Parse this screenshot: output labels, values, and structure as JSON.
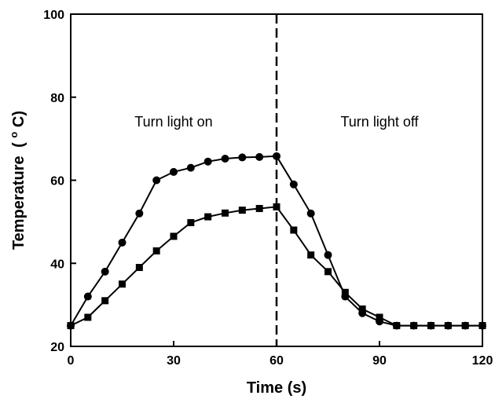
{
  "chart_data": {
    "type": "line",
    "xlabel": "Time (s)",
    "ylabel": "Temperature",
    "ylabel_sup": "o",
    "ylabel_unit": "C)",
    "ylabel_open": "(",
    "xlim": [
      0,
      120
    ],
    "ylim": [
      20,
      100
    ],
    "xticks": [
      0,
      30,
      60,
      90,
      120
    ],
    "yticks": [
      20,
      40,
      60,
      80,
      100
    ],
    "grid": false,
    "annotations": [
      {
        "text": "Turn light on",
        "x": 30,
        "y": 73
      },
      {
        "text": "Turn light off",
        "x": 90,
        "y": 73
      }
    ],
    "vline": {
      "x": 60,
      "style": "dashed"
    },
    "x": [
      0,
      5,
      10,
      15,
      20,
      25,
      30,
      35,
      40,
      45,
      50,
      55,
      60,
      65,
      70,
      75,
      80,
      85,
      90,
      95,
      100,
      105,
      110,
      115,
      120
    ],
    "series": [
      {
        "marker": "circle",
        "color": "#000000",
        "values": [
          25,
          32,
          38,
          45,
          52,
          60,
          62,
          63,
          64.5,
          65.2,
          65.5,
          65.6,
          65.8,
          59,
          52,
          42,
          32,
          28,
          26,
          25,
          25,
          25,
          25,
          25,
          25
        ]
      },
      {
        "marker": "square",
        "color": "#000000",
        "values": [
          25,
          27,
          31,
          35,
          39,
          43,
          46.5,
          49.8,
          51.2,
          52.1,
          52.8,
          53.2,
          53.6,
          48,
          42,
          38,
          33,
          29,
          27,
          25,
          25,
          25,
          25,
          25,
          25
        ]
      }
    ]
  }
}
